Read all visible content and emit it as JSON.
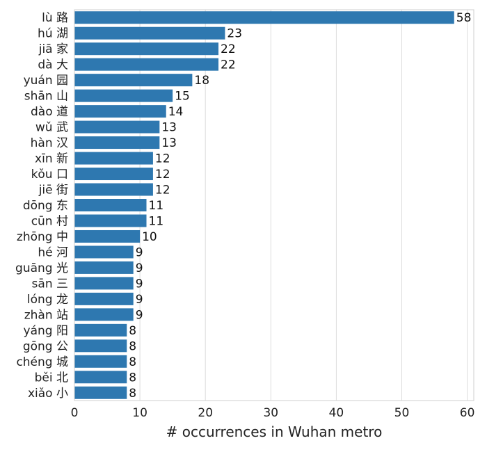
{
  "chart_data": {
    "type": "bar",
    "orientation": "horizontal",
    "categories": [
      "lù 路",
      "hú 湖",
      "jiā 家",
      "dà 大",
      "yuán 园",
      "shān 山",
      "dào 道",
      "wǔ 武",
      "hàn 汉",
      "xīn 新",
      "kǒu 口",
      "jiē 街",
      "dōng 东",
      "cūn 村",
      "zhōng 中",
      "hé 河",
      "guāng 光",
      "sān 三",
      "lóng 龙",
      "zhàn 站",
      "yáng 阳",
      "gōng 公",
      "chéng 城",
      "běi 北",
      "xiǎo 小"
    ],
    "values": [
      58,
      23,
      22,
      22,
      18,
      15,
      14,
      13,
      13,
      12,
      12,
      12,
      11,
      11,
      10,
      9,
      9,
      9,
      9,
      9,
      8,
      8,
      8,
      8,
      8
    ],
    "xlabel": "# occurrences in Wuhan metro",
    "ylabel": "",
    "xlim": [
      0,
      61
    ],
    "xticks": [
      0,
      10,
      20,
      30,
      40,
      50,
      60
    ],
    "grid": "vertical",
    "bar_color": "#2e78b0",
    "data_labels": true
  }
}
